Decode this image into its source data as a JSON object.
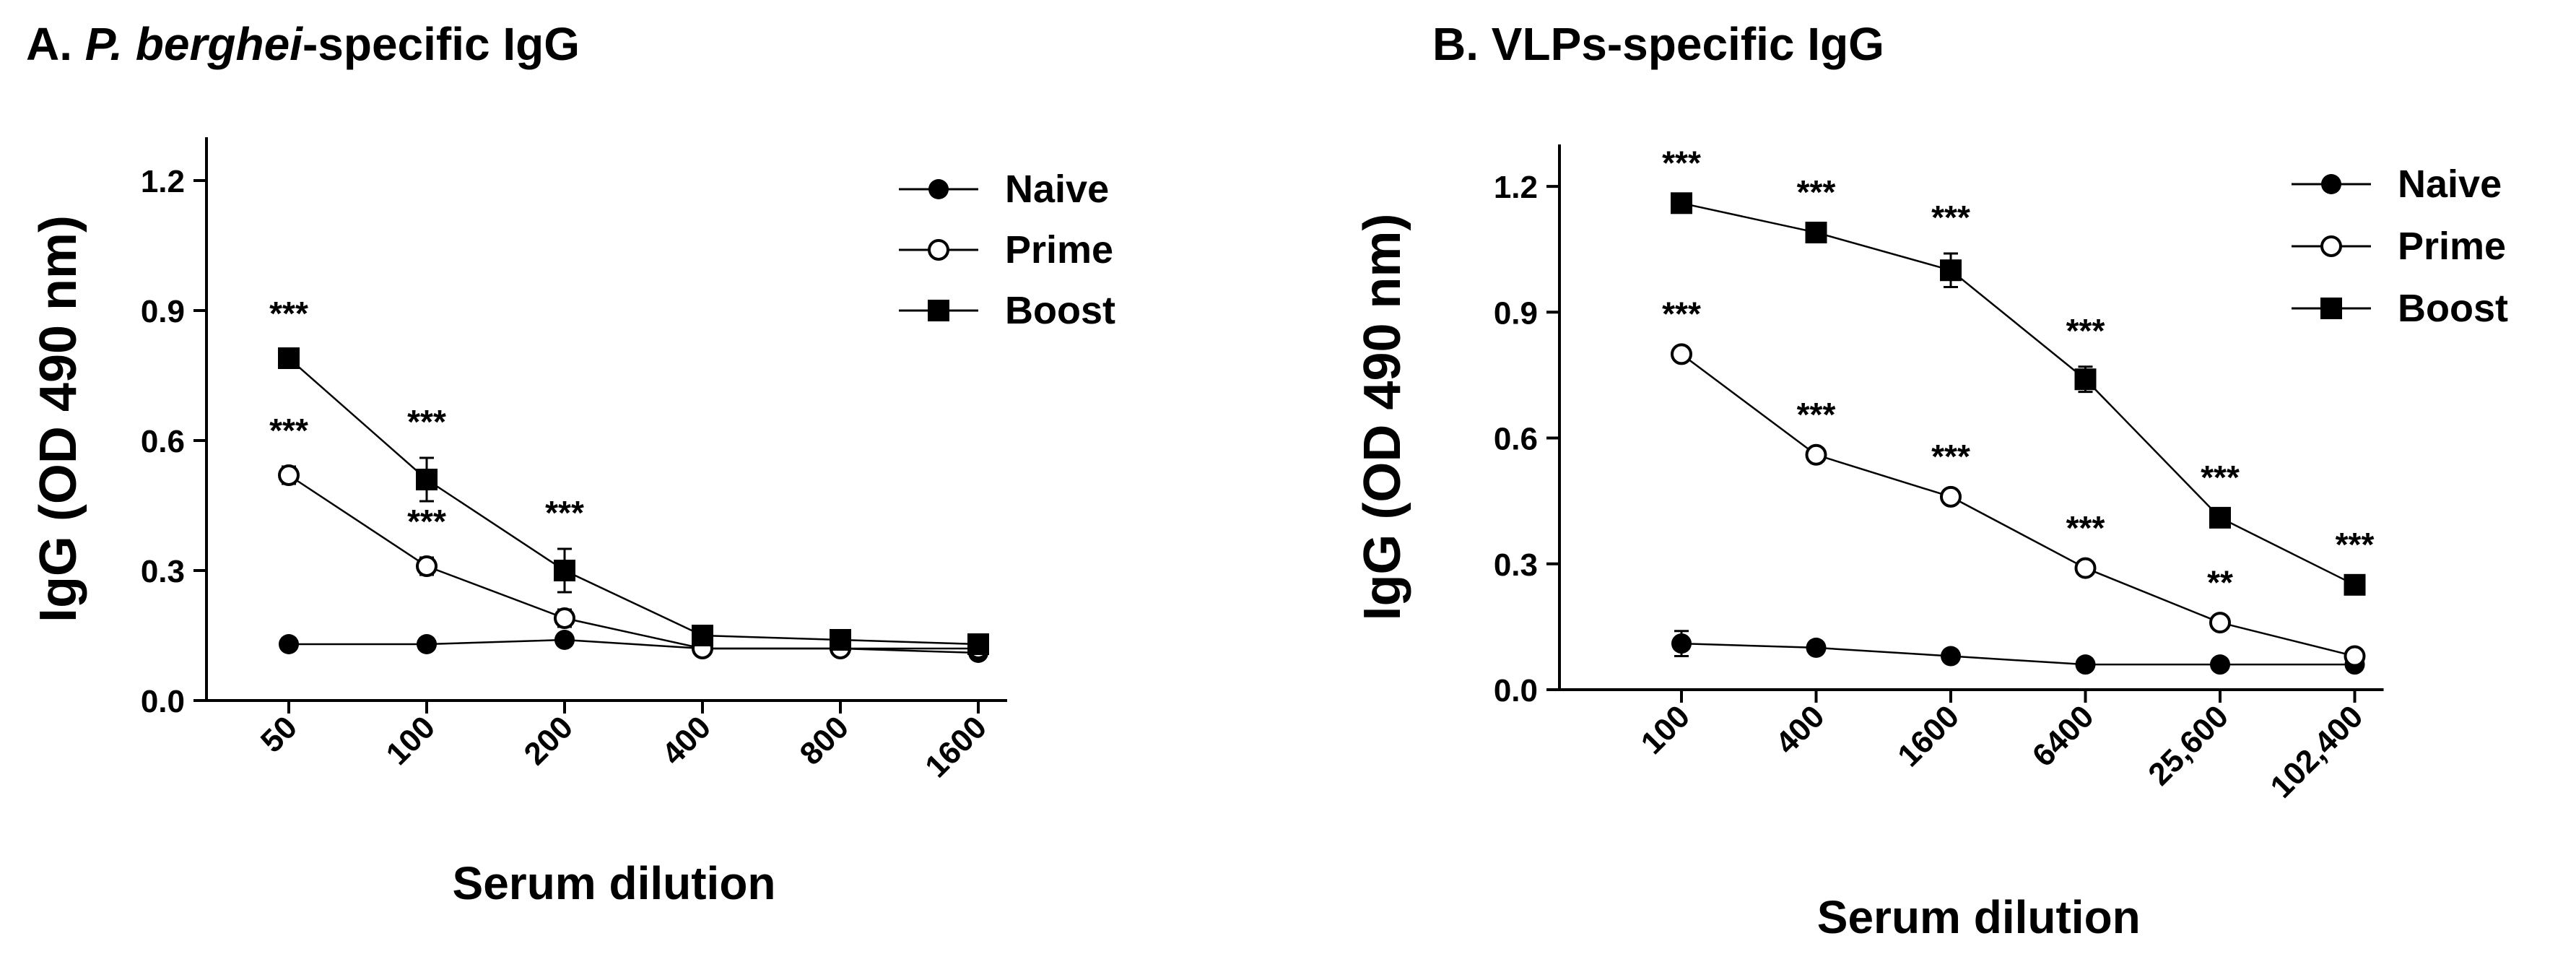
{
  "chart_data": [
    {
      "id": "A",
      "type": "line",
      "title_prefix": "A. ",
      "title_italic": "P. berghei",
      "title_suffix": "-specific IgG",
      "xlabel": "Serum dilution",
      "ylabel": "IgG (OD 490 nm)",
      "categories": [
        "50",
        "100",
        "200",
        "400",
        "800",
        "1600"
      ],
      "ylim": [
        0,
        1.3
      ],
      "yticks": [
        "0.0",
        "0.3",
        "0.6",
        "0.9",
        "1.2"
      ],
      "yticks_values": [
        0,
        0.3,
        0.6,
        0.9,
        1.2
      ],
      "legend_position": "top-right",
      "series": [
        {
          "name": "Naive",
          "marker": "filled-circle",
          "values": [
            0.13,
            0.13,
            0.14,
            0.12,
            0.12,
            0.11
          ],
          "errors": [
            0.01,
            0.01,
            0.01,
            0.01,
            0.01,
            0.01
          ]
        },
        {
          "name": "Prime",
          "marker": "open-circle",
          "values": [
            0.52,
            0.31,
            0.19,
            0.12,
            0.12,
            0.12
          ],
          "errors": [
            0.02,
            0.02,
            0.02,
            0.01,
            0.01,
            0.01
          ]
        },
        {
          "name": "Boost",
          "marker": "filled-square",
          "values": [
            0.79,
            0.51,
            0.3,
            0.15,
            0.14,
            0.13
          ],
          "errors": [
            0.02,
            0.05,
            0.05,
            0.01,
            0.01,
            0.01
          ]
        }
      ],
      "annotations": [
        {
          "series": "Boost",
          "index": 0,
          "text": "***"
        },
        {
          "series": "Boost",
          "index": 1,
          "text": "***"
        },
        {
          "series": "Boost",
          "index": 2,
          "text": "***"
        },
        {
          "series": "Prime",
          "index": 0,
          "text": "***"
        },
        {
          "series": "Prime",
          "index": 1,
          "text": "***"
        }
      ]
    },
    {
      "id": "B",
      "type": "line",
      "title_prefix": "B. ",
      "title_italic": "",
      "title_suffix": "VLPs-specific IgG",
      "xlabel": "Serum dilution",
      "ylabel": "IgG (OD 490 nm)",
      "categories": [
        "100",
        "400",
        "1600",
        "6400",
        "25,600",
        "102,400"
      ],
      "ylim": [
        0,
        1.3
      ],
      "yticks": [
        "0.0",
        "0.3",
        "0.6",
        "0.9",
        "1.2"
      ],
      "yticks_values": [
        0,
        0.3,
        0.6,
        0.9,
        1.2
      ],
      "legend_position": "top-right",
      "series": [
        {
          "name": "Naive",
          "marker": "filled-circle",
          "values": [
            0.11,
            0.1,
            0.08,
            0.06,
            0.06,
            0.06
          ],
          "errors": [
            0.03,
            0.01,
            0.01,
            0.01,
            0.01,
            0.01
          ]
        },
        {
          "name": "Prime",
          "marker": "open-circle",
          "values": [
            0.8,
            0.56,
            0.46,
            0.29,
            0.16,
            0.08
          ],
          "errors": [
            0.01,
            0.01,
            0.01,
            0.01,
            0.01,
            0.01
          ]
        },
        {
          "name": "Boost",
          "marker": "filled-square",
          "values": [
            1.16,
            1.09,
            1.0,
            0.74,
            0.41,
            0.25
          ],
          "errors": [
            0.01,
            0.01,
            0.04,
            0.03,
            0.01,
            0.01
          ]
        }
      ],
      "annotations": [
        {
          "series": "Boost",
          "index": 0,
          "text": "***"
        },
        {
          "series": "Boost",
          "index": 1,
          "text": "***"
        },
        {
          "series": "Boost",
          "index": 2,
          "text": "***"
        },
        {
          "series": "Boost",
          "index": 3,
          "text": "***"
        },
        {
          "series": "Boost",
          "index": 4,
          "text": "***"
        },
        {
          "series": "Boost",
          "index": 5,
          "text": "***"
        },
        {
          "series": "Prime",
          "index": 0,
          "text": "***"
        },
        {
          "series": "Prime",
          "index": 1,
          "text": "***"
        },
        {
          "series": "Prime",
          "index": 2,
          "text": "***"
        },
        {
          "series": "Prime",
          "index": 3,
          "text": "***"
        },
        {
          "series": "Prime",
          "index": 4,
          "text": "**"
        }
      ]
    }
  ]
}
